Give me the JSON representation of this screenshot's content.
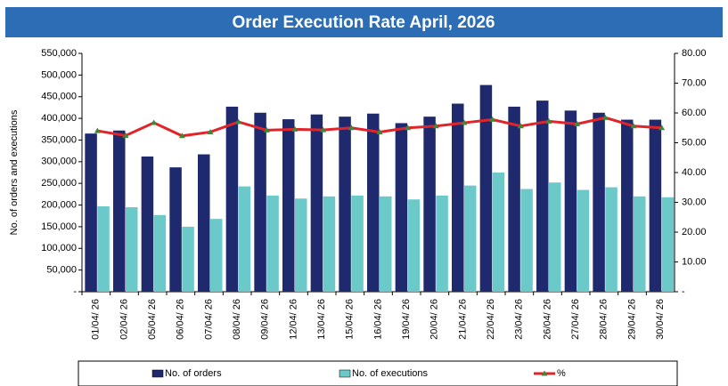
{
  "chart_data": {
    "type": "bar_line",
    "title": "Order Execution Rate April, 2026",
    "y_label": "No. of orders and executions",
    "categories": [
      "01/04/ 26",
      "02/04/ 26",
      "05/04/ 26",
      "06/04/ 26",
      "07/04/ 26",
      "08/04/ 26",
      "09/04/ 26",
      "12/04/ 26",
      "13/04/ 26",
      "15/04/ 26",
      "16/04/ 26",
      "19/04/ 26",
      "20/04/ 26",
      "21/04/ 26",
      "22/04/ 26",
      "23/04/ 26",
      "26/04/ 26",
      "27/04/ 26",
      "28/04/ 26",
      "29/04/ 26",
      "30/04/ 26"
    ],
    "series": [
      {
        "name": "No. of orders",
        "color": "#1f2a6e",
        "kind": "bar",
        "values": [
          365000,
          372000,
          312000,
          287000,
          317000,
          427000,
          413000,
          398000,
          409000,
          404000,
          411000,
          389000,
          404000,
          434000,
          477000,
          427000,
          441000,
          418000,
          413000,
          397000,
          397000
        ]
      },
      {
        "name": "No. of executions",
        "color": "#6cc9c9",
        "kind": "bar",
        "values": [
          197000,
          195000,
          177000,
          150000,
          168000,
          243000,
          222000,
          215000,
          220000,
          222000,
          220000,
          213000,
          222000,
          245000,
          275000,
          237000,
          252000,
          235000,
          241000,
          220000,
          218000
        ]
      },
      {
        "name": "%",
        "color": "#e0242a",
        "marker_color": "#3a8a3a",
        "kind": "line",
        "axis": "y2",
        "values": [
          54,
          52.4,
          56.7,
          52.3,
          53.6,
          57,
          54.2,
          54.5,
          54.3,
          55,
          53.6,
          55,
          55.6,
          56.7,
          57.8,
          55.6,
          57.2,
          56.3,
          58.4,
          55.6,
          55
        ]
      }
    ],
    "ylim": [
      0,
      550000
    ],
    "yticks": [
      {
        "value": 0,
        "label": "-"
      },
      {
        "value": 50000,
        "label": "50,000"
      },
      {
        "value": 100000,
        "label": "100,000"
      },
      {
        "value": 150000,
        "label": "150,000"
      },
      {
        "value": 200000,
        "label": "200,000"
      },
      {
        "value": 250000,
        "label": "250,000"
      },
      {
        "value": 300000,
        "label": "300,000"
      },
      {
        "value": 350000,
        "label": "350,000"
      },
      {
        "value": 400000,
        "label": "400,000"
      },
      {
        "value": 450000,
        "label": "450,000"
      },
      {
        "value": 500000,
        "label": "500,000"
      },
      {
        "value": 550000,
        "label": "550,000"
      }
    ],
    "y2lim": [
      0,
      80
    ],
    "y2ticks": [
      {
        "value": 0,
        "label": "-"
      },
      {
        "value": 10,
        "label": "10.00"
      },
      {
        "value": 20,
        "label": "20.00"
      },
      {
        "value": 30,
        "label": "30.00"
      },
      {
        "value": 40,
        "label": "40.00"
      },
      {
        "value": 50,
        "label": "50.00"
      },
      {
        "value": 60,
        "label": "60.00"
      },
      {
        "value": 70,
        "label": "70.00"
      },
      {
        "value": 80,
        "label": "80.00"
      }
    ],
    "legend": "bottom"
  }
}
